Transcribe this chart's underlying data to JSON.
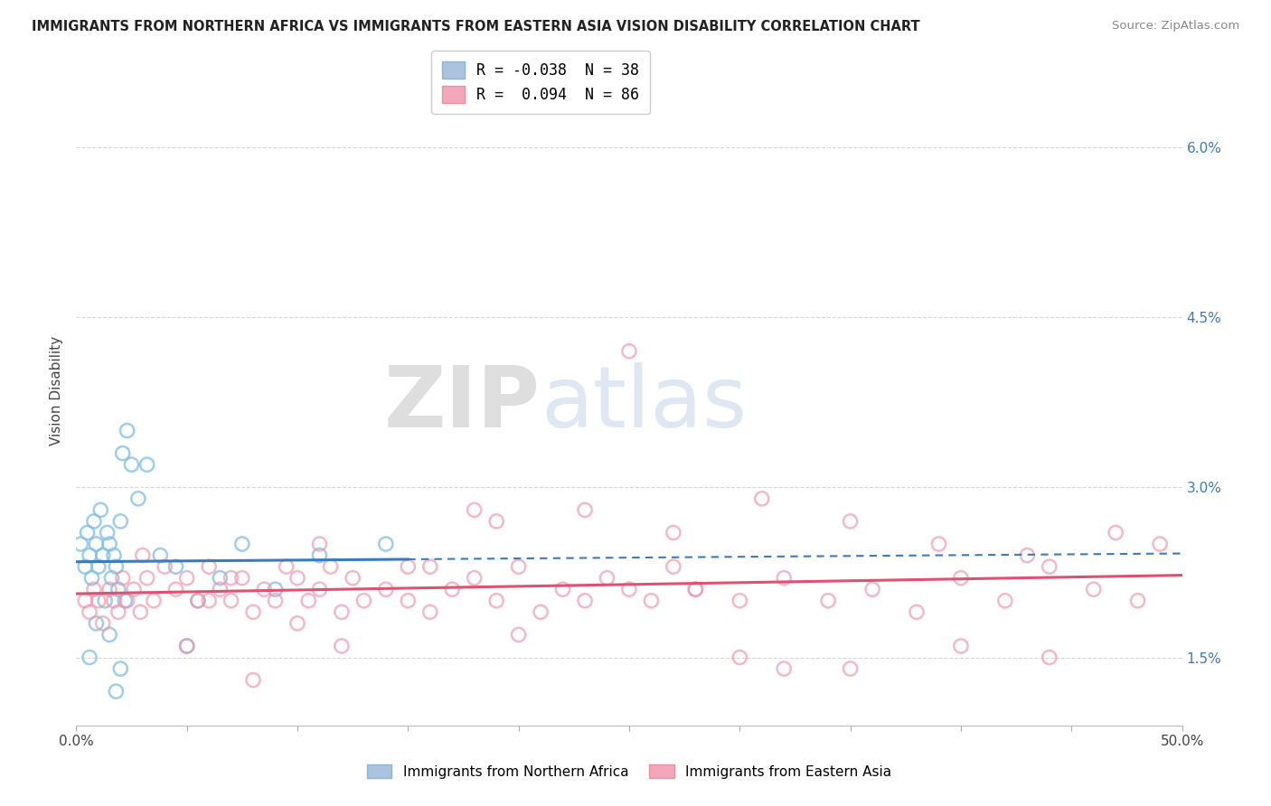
{
  "title": "IMMIGRANTS FROM NORTHERN AFRICA VS IMMIGRANTS FROM EASTERN ASIA VISION DISABILITY CORRELATION CHART",
  "source": "Source: ZipAtlas.com",
  "ylabel": "Vision Disability",
  "right_yticks": [
    1.5,
    3.0,
    4.5,
    6.0
  ],
  "right_ytick_labels": [
    "1.5%",
    "3.0%",
    "4.5%",
    "6.0%"
  ],
  "xlim": [
    0.0,
    50.0
  ],
  "ylim": [
    0.9,
    6.8
  ],
  "xticks": [
    0,
    5,
    10,
    15,
    20,
    25,
    30,
    35,
    40,
    45,
    50
  ],
  "xtick_labels": [
    "0.0%",
    "",
    "",
    "",
    "",
    "",
    "",
    "",
    "",
    "",
    "50.0%"
  ],
  "blue_label": "R = -0.038  N = 38",
  "pink_label": "R =  0.094  N = 86",
  "blue_scatter_color": "#7fbee8",
  "pink_scatter_color": "#f093aa",
  "blue_trend_color": "#3a7abf",
  "pink_trend_color": "#e05070",
  "series_blue": {
    "name": "Immigrants from Northern Africa",
    "x": [
      0.2,
      0.4,
      0.5,
      0.6,
      0.7,
      0.8,
      0.9,
      1.0,
      1.1,
      1.2,
      1.4,
      1.5,
      1.6,
      1.7,
      1.8,
      1.9,
      2.0,
      2.1,
      2.3,
      2.5,
      2.8,
      3.2,
      3.8,
      4.5,
      5.5,
      6.5,
      7.5,
      9.0,
      11.0,
      14.0,
      5.0,
      2.0,
      1.3,
      0.6,
      0.9,
      1.5,
      1.8,
      2.2
    ],
    "y": [
      2.5,
      2.3,
      2.6,
      2.4,
      2.2,
      2.7,
      2.5,
      2.3,
      2.8,
      2.4,
      2.6,
      2.5,
      2.2,
      2.4,
      2.3,
      2.1,
      2.7,
      3.3,
      3.5,
      3.2,
      2.9,
      3.2,
      2.4,
      2.3,
      2.0,
      2.2,
      2.5,
      2.1,
      2.4,
      2.5,
      1.6,
      1.4,
      2.0,
      1.5,
      1.8,
      1.7,
      1.2,
      2.0
    ]
  },
  "series_pink": {
    "name": "Immigrants from Eastern Asia",
    "x": [
      0.4,
      0.6,
      0.8,
      1.0,
      1.2,
      1.5,
      1.7,
      1.9,
      2.1,
      2.3,
      2.6,
      2.9,
      3.2,
      3.5,
      4.0,
      4.5,
      5.0,
      5.5,
      6.0,
      6.5,
      7.0,
      7.5,
      8.0,
      8.5,
      9.0,
      9.5,
      10.0,
      10.5,
      11.0,
      11.5,
      12.0,
      12.5,
      13.0,
      14.0,
      15.0,
      16.0,
      17.0,
      18.0,
      19.0,
      20.0,
      21.0,
      22.0,
      23.0,
      24.0,
      25.0,
      26.0,
      27.0,
      28.0,
      30.0,
      32.0,
      34.0,
      36.0,
      38.0,
      40.0,
      42.0,
      44.0,
      46.0,
      48.0,
      3.0,
      7.0,
      11.0,
      15.0,
      19.0,
      23.0,
      27.0,
      31.0,
      35.0,
      39.0,
      43.0,
      47.0,
      5.0,
      10.0,
      20.0,
      30.0,
      40.0,
      49.0,
      18.0,
      35.0,
      25.0,
      12.0,
      8.0,
      44.0,
      32.0,
      6.0,
      16.0,
      28.0
    ],
    "y": [
      2.0,
      1.9,
      2.1,
      2.0,
      1.8,
      2.1,
      2.0,
      1.9,
      2.2,
      2.0,
      2.1,
      1.9,
      2.2,
      2.0,
      2.3,
      2.1,
      2.2,
      2.0,
      2.3,
      2.1,
      2.0,
      2.2,
      1.9,
      2.1,
      2.0,
      2.3,
      2.2,
      2.0,
      2.1,
      2.3,
      1.9,
      2.2,
      2.0,
      2.1,
      2.0,
      2.3,
      2.1,
      2.2,
      2.0,
      2.3,
      1.9,
      2.1,
      2.0,
      2.2,
      2.1,
      2.0,
      2.3,
      2.1,
      2.0,
      2.2,
      2.0,
      2.1,
      1.9,
      2.2,
      2.0,
      2.3,
      2.1,
      2.0,
      2.4,
      2.2,
      2.5,
      2.3,
      2.7,
      2.8,
      2.6,
      2.9,
      2.7,
      2.5,
      2.4,
      2.6,
      1.6,
      1.8,
      1.7,
      1.5,
      1.6,
      2.5,
      2.8,
      1.4,
      4.2,
      1.6,
      1.3,
      1.5,
      1.4,
      2.0,
      1.9,
      2.1
    ]
  },
  "watermark_zip": "ZIP",
  "watermark_atlas": "atlas",
  "background_color": "#ffffff",
  "grid_color": "#cccccc",
  "legend_blue_color": "#aac4e0",
  "legend_pink_color": "#f4a7b9"
}
